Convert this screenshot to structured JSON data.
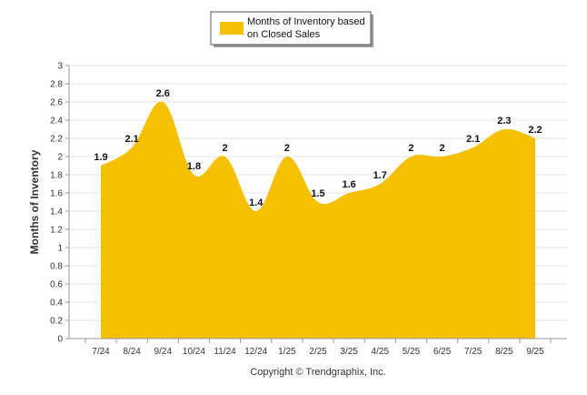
{
  "chart_data": {
    "type": "area",
    "title": "",
    "xlabel": "",
    "ylabel": "Months of Inventory",
    "categories": [
      "7/24",
      "8/24",
      "9/24",
      "10/24",
      "11/24",
      "12/24",
      "1/25",
      "2/25",
      "3/25",
      "4/25",
      "5/25",
      "6/25",
      "7/25",
      "8/25",
      "9/25"
    ],
    "series": [
      {
        "name": "Months of Inventory based on Closed Sales",
        "values": [
          1.9,
          2.1,
          2.6,
          1.8,
          2.0,
          1.4,
          2.0,
          1.5,
          1.6,
          1.7,
          2.0,
          2.0,
          2.1,
          2.3,
          2.2
        ],
        "labels": [
          "1.9",
          "2.1",
          "2.6",
          "1.8",
          "2",
          "1.4",
          "2",
          "1.5",
          "1.6",
          "1.7",
          "2",
          "2",
          "2.1",
          "2.3",
          "2.2"
        ],
        "color": "#f5c000"
      }
    ],
    "ylim": [
      0,
      3
    ],
    "yticks": [
      "0",
      "0.2",
      "0.4",
      "0.6",
      "0.8",
      "1",
      "1.2",
      "1.4",
      "1.6",
      "1.8",
      "2",
      "2.2",
      "2.4",
      "2.6",
      "2.8",
      "3"
    ],
    "grid": true,
    "legend": {
      "position": "top-center",
      "lines": [
        "Months of Inventory based",
        "on Closed Sales"
      ]
    }
  },
  "footer": {
    "copyright": "Copyright © Trendgraphix, Inc."
  }
}
